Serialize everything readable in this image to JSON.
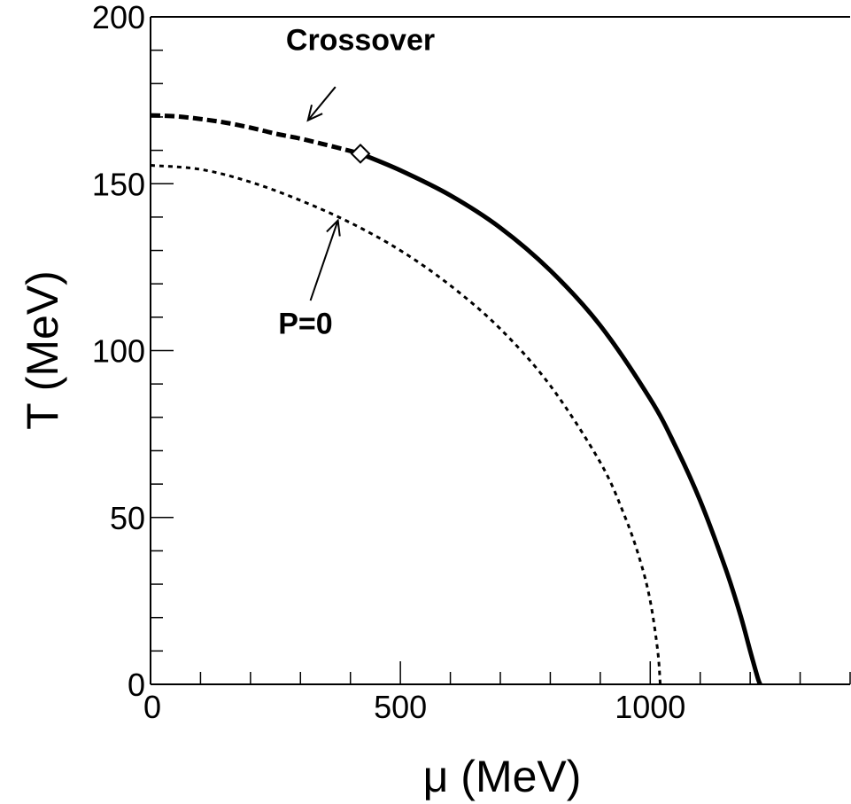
{
  "chart_data": {
    "type": "line",
    "title": "",
    "xlabel": "μ (MeV)",
    "ylabel": "T (MeV)",
    "xlim": [
      0,
      1400
    ],
    "ylim": [
      0,
      200
    ],
    "xticks": [
      0,
      500,
      1000
    ],
    "xtick_labels": [
      "0",
      "500",
      "1000"
    ],
    "yticks": [
      0,
      50,
      100,
      150,
      200
    ],
    "ytick_labels": [
      "0",
      "50",
      "100",
      "150",
      "200"
    ],
    "x_minor_step": 100,
    "y_minor_step": 10,
    "grid": false,
    "series": [
      {
        "style": "dashed-thick",
        "x": [
          0,
          50,
          100,
          150,
          200,
          250,
          300,
          350,
          400,
          420
        ],
        "y": [
          170.5,
          170.2,
          169.4,
          168.3,
          166.8,
          165.0,
          163.5,
          161.7,
          159.8,
          159.0
        ]
      },
      {
        "style": "solid-thick",
        "x": [
          420,
          500,
          600,
          700,
          800,
          900,
          1000,
          1050,
          1100,
          1150,
          1180,
          1200,
          1215,
          1220
        ],
        "y": [
          159.0,
          154.0,
          146.5,
          136.8,
          124.0,
          107.5,
          85.5,
          71.5,
          55.0,
          35.0,
          21.0,
          10.0,
          2.0,
          0
        ]
      },
      {
        "style": "dotted",
        "x": [
          0,
          100,
          200,
          300,
          400,
          500,
          600,
          700,
          800,
          900,
          950,
          980,
          1000,
          1015,
          1020
        ],
        "y": [
          155.5,
          154.3,
          150.5,
          145.0,
          138.3,
          130.0,
          119.5,
          106.5,
          89.5,
          66.5,
          50.0,
          37.0,
          25.0,
          10.0,
          0
        ]
      }
    ],
    "markers": [
      {
        "shape": "diamond",
        "x": 420,
        "y": 159
      }
    ],
    "annotations": [
      {
        "text": "Crossover",
        "text_at": [
          420,
          190
        ],
        "arrow_from": [
          370,
          179
        ],
        "arrow_to": [
          315,
          169
        ]
      },
      {
        "text": "P=0",
        "text_at": [
          310,
          105
        ],
        "arrow_from": [
          320,
          115
        ],
        "arrow_to": [
          375,
          139
        ]
      }
    ]
  }
}
